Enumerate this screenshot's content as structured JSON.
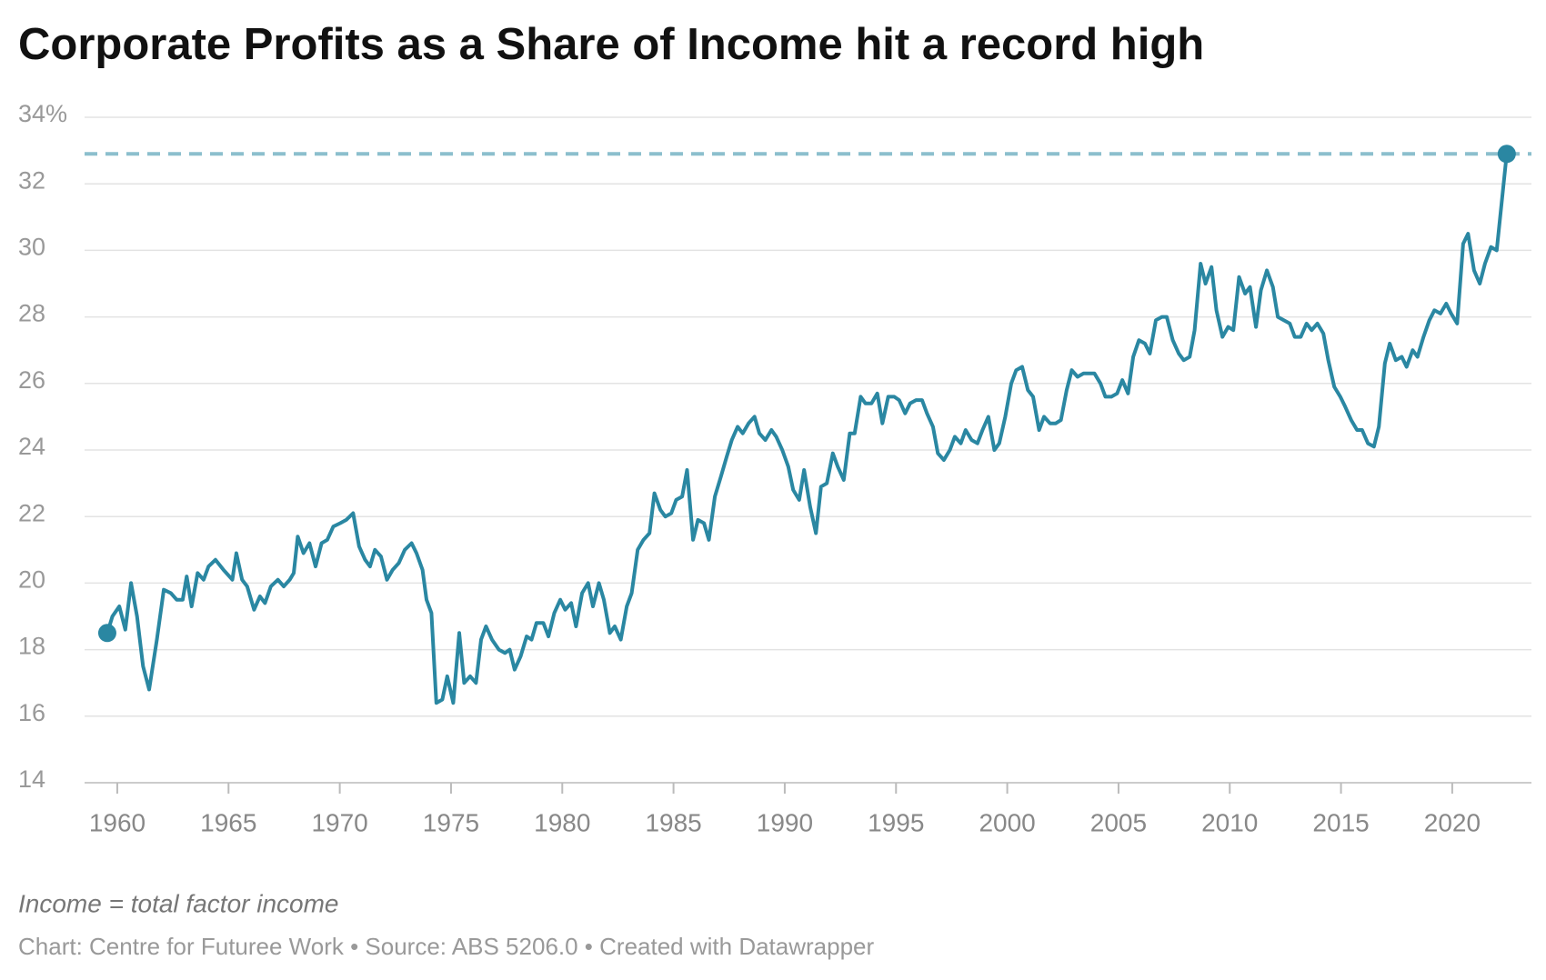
{
  "chart_data": {
    "type": "line",
    "title": "Corporate Profits as a Share of Income hit a record high",
    "note": "Income = total factor income",
    "footer": "Chart: Centre for Futuree Work • Source: ABS 5206.0 • Created with Datawrapper",
    "x": [
      1959.55,
      1959.78,
      1960.09,
      1960.36,
      1960.62,
      1960.89,
      1961.16,
      1961.43,
      1961.78,
      1962.09,
      1962.41,
      1962.67,
      1962.94,
      1963.12,
      1963.34,
      1963.61,
      1963.88,
      1964.1,
      1964.41,
      1964.77,
      1965.17,
      1965.35,
      1965.61,
      1965.84,
      1966.15,
      1966.41,
      1966.64,
      1966.9,
      1967.22,
      1967.48,
      1967.75,
      1967.93,
      1968.11,
      1968.37,
      1968.64,
      1968.91,
      1969.18,
      1969.44,
      1969.71,
      1970.02,
      1970.29,
      1970.6,
      1970.87,
      1971.14,
      1971.36,
      1971.58,
      1971.85,
      1972.12,
      1972.38,
      1972.65,
      1972.92,
      1973.23,
      1973.45,
      1973.72,
      1973.9,
      1974.12,
      1974.34,
      1974.61,
      1974.83,
      1975.1,
      1975.37,
      1975.59,
      1975.86,
      1976.12,
      1976.35,
      1976.57,
      1976.84,
      1977.15,
      1977.42,
      1977.64,
      1977.86,
      1978.13,
      1978.4,
      1978.62,
      1978.84,
      1979.15,
      1979.38,
      1979.64,
      1979.91,
      1980.13,
      1980.4,
      1980.62,
      1980.89,
      1981.16,
      1981.38,
      1981.65,
      1981.87,
      1982.14,
      1982.36,
      1982.63,
      1982.9,
      1983.12,
      1983.39,
      1983.65,
      1983.92,
      1984.14,
      1984.41,
      1984.63,
      1984.9,
      1985.12,
      1985.39,
      1985.61,
      1985.88,
      1986.1,
      1986.37,
      1986.59,
      1986.86,
      1987.13,
      1987.39,
      1987.62,
      1987.88,
      1988.11,
      1988.37,
      1988.64,
      1988.86,
      1989.13,
      1989.4,
      1989.62,
      1989.89,
      1990.16,
      1990.38,
      1990.65,
      1990.87,
      1991.14,
      1991.4,
      1991.63,
      1991.89,
      1992.16,
      1992.38,
      1992.65,
      1992.92,
      1993.14,
      1993.41,
      1993.63,
      1993.9,
      1994.16,
      1994.39,
      1994.65,
      1994.92,
      1995.14,
      1995.41,
      1995.63,
      1995.9,
      1996.17,
      1996.39,
      1996.66,
      1996.88,
      1997.15,
      1997.42,
      1997.64,
      1997.91,
      1998.13,
      1998.4,
      1998.66,
      1998.89,
      1999.15,
      1999.42,
      1999.64,
      1999.91,
      2000.18,
      2000.4,
      2000.67,
      2000.93,
      2001.16,
      2001.43,
      2001.65,
      2001.92,
      2002.18,
      2002.41,
      2002.67,
      2002.9,
      2003.16,
      2003.43,
      2003.65,
      2003.92,
      2004.19,
      2004.41,
      2004.68,
      2004.94,
      2005.17,
      2005.43,
      2005.66,
      2005.92,
      2006.19,
      2006.41,
      2006.68,
      2006.95,
      2007.17,
      2007.44,
      2007.71,
      2007.93,
      2008.2,
      2008.42,
      2008.69,
      2008.91,
      2009.18,
      2009.4,
      2009.67,
      2009.93,
      2010.16,
      2010.42,
      2010.69,
      2010.91,
      2011.18,
      2011.4,
      2011.67,
      2011.94,
      2012.16,
      2012.43,
      2012.7,
      2012.92,
      2013.19,
      2013.45,
      2013.68,
      2013.94,
      2014.21,
      2014.43,
      2014.7,
      2014.97,
      2015.19,
      2015.46,
      2015.72,
      2015.95,
      2016.21,
      2016.48,
      2016.7,
      2016.97,
      2017.19,
      2017.46,
      2017.73,
      2017.95,
      2018.22,
      2018.44,
      2018.71,
      2018.97,
      2019.2,
      2019.47,
      2019.73,
      2019.95,
      2020.22,
      2020.49,
      2020.71,
      2020.98,
      2021.24,
      2021.47,
      2021.74,
      2022.0,
      2022.45
    ],
    "values": [
      18.5,
      19.0,
      19.3,
      18.6,
      20.0,
      19.0,
      17.5,
      16.8,
      18.3,
      19.8,
      19.7,
      19.5,
      19.5,
      20.2,
      19.3,
      20.3,
      20.1,
      20.5,
      20.7,
      20.4,
      20.1,
      20.9,
      20.1,
      19.9,
      19.2,
      19.6,
      19.4,
      19.9,
      20.1,
      19.9,
      20.1,
      20.3,
      21.4,
      20.9,
      21.2,
      20.5,
      21.2,
      21.3,
      21.7,
      21.8,
      21.9,
      22.1,
      21.1,
      20.7,
      20.5,
      21.0,
      20.8,
      20.1,
      20.4,
      20.6,
      21.0,
      21.2,
      20.9,
      20.4,
      19.5,
      19.1,
      16.4,
      16.5,
      17.2,
      16.4,
      18.5,
      17.0,
      17.2,
      17.0,
      18.3,
      18.7,
      18.3,
      18.0,
      17.9,
      18.0,
      17.4,
      17.8,
      18.4,
      18.3,
      18.8,
      18.8,
      18.4,
      19.1,
      19.5,
      19.2,
      19.4,
      18.7,
      19.7,
      20.0,
      19.3,
      20.0,
      19.5,
      18.5,
      18.7,
      18.3,
      19.3,
      19.7,
      21.0,
      21.3,
      21.5,
      22.7,
      22.2,
      22.0,
      22.1,
      22.5,
      22.6,
      23.4,
      21.3,
      21.9,
      21.8,
      21.3,
      22.6,
      23.2,
      23.8,
      24.3,
      24.7,
      24.5,
      24.8,
      25.0,
      24.5,
      24.3,
      24.6,
      24.4,
      24.0,
      23.5,
      22.8,
      22.5,
      23.4,
      22.3,
      21.5,
      22.9,
      23.0,
      23.9,
      23.5,
      23.1,
      24.5,
      24.5,
      25.6,
      25.4,
      25.4,
      25.7,
      24.8,
      25.6,
      25.6,
      25.5,
      25.1,
      25.4,
      25.5,
      25.5,
      25.1,
      24.7,
      23.9,
      23.7,
      24.0,
      24.4,
      24.2,
      24.6,
      24.3,
      24.2,
      24.6,
      25.0,
      24.0,
      24.2,
      25.0,
      26.0,
      26.4,
      26.5,
      25.8,
      25.6,
      24.6,
      25.0,
      24.8,
      24.8,
      24.9,
      25.8,
      26.4,
      26.2,
      26.3,
      26.3,
      26.3,
      26.0,
      25.6,
      25.6,
      25.7,
      26.1,
      25.7,
      26.8,
      27.3,
      27.2,
      26.9,
      27.9,
      28.0,
      28.0,
      27.3,
      26.9,
      26.7,
      26.8,
      27.6,
      29.6,
      29.0,
      29.5,
      28.2,
      27.4,
      27.7,
      27.6,
      29.2,
      28.7,
      28.9,
      27.7,
      28.8,
      29.4,
      28.9,
      28.0,
      27.9,
      27.8,
      27.4,
      27.4,
      27.8,
      27.6,
      27.8,
      27.5,
      26.7,
      25.9,
      25.6,
      25.3,
      24.9,
      24.6,
      24.6,
      24.2,
      24.1,
      24.7,
      26.6,
      27.2,
      26.7,
      26.8,
      26.5,
      27.0,
      26.8,
      27.4,
      27.9,
      28.2,
      28.1,
      28.4,
      28.1,
      27.8,
      30.2,
      30.5,
      29.4,
      29.0,
      29.6,
      30.1,
      30.0,
      32.9
    ],
    "color": "#2a87a2",
    "reference_color": "#8cbfcd",
    "xlim": [
      1958.53,
      2023.56
    ],
    "xticks": [
      1960,
      1965,
      1970,
      1975,
      1980,
      1985,
      1990,
      1995,
      2000,
      2005,
      2010,
      2015,
      2020
    ],
    "ylim": [
      14,
      34
    ],
    "yticks": [
      14,
      16,
      18,
      20,
      22,
      24,
      26,
      28,
      30,
      32,
      {
        "value": 34,
        "label": "34%"
      }
    ],
    "grid": true
  }
}
